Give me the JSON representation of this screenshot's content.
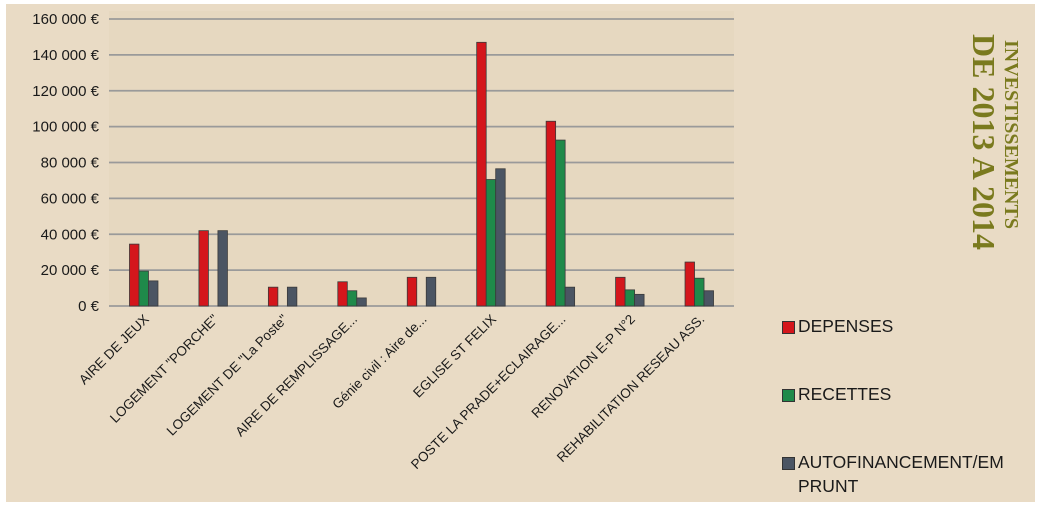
{
  "chart_data": {
    "type": "bar",
    "title": "INVESTISSEMENTS DE 2013 A 2014",
    "title_lines": [
      "INVESTISSEMENTS",
      "DE 2013 A 2014"
    ],
    "categories": [
      "AIRE DE JEUX",
      "LOGEMENT \"PORCHE\"",
      "LOGEMENT DE \"La Poste\"",
      "AIRE DE REMPLISSAGE...",
      "Génie civil : Aire de...",
      "EGLISE ST FELIX",
      "POSTE LA PRADE+ECLAIRAGE...",
      "RENOVATION E-P N°2",
      "REHABILITATION RESEAU ASS."
    ],
    "series": [
      {
        "name": "DEPENSES",
        "color": "#d4161c",
        "values": [
          34500,
          42000,
          10500,
          13500,
          16000,
          147000,
          103000,
          16000,
          24500
        ]
      },
      {
        "name": "RECETTES",
        "color": "#1f8a4a",
        "values": [
          19500,
          0,
          0,
          8500,
          0,
          70500,
          92500,
          9000,
          15500
        ]
      },
      {
        "name": "AUTOFINANCEMENT/EMPRUNT",
        "color": "#4b5563",
        "values": [
          14000,
          42000,
          10500,
          4500,
          16000,
          76500,
          10500,
          6500,
          8500
        ]
      }
    ],
    "yticks": [
      "0 €",
      "20 000 €",
      "40 000 €",
      "60 000 €",
      "80 000 €",
      "100 000 €",
      "120 000 €",
      "140 000 €",
      "160 000 €"
    ],
    "ylim": [
      0,
      160000
    ],
    "grid": true,
    "legend_position": "right",
    "legend_labels": [
      "DEPENSES",
      "RECETTES",
      "AUTOFINANCEMENT/EM PRUNT"
    ],
    "xlabel": "",
    "ylabel": ""
  }
}
